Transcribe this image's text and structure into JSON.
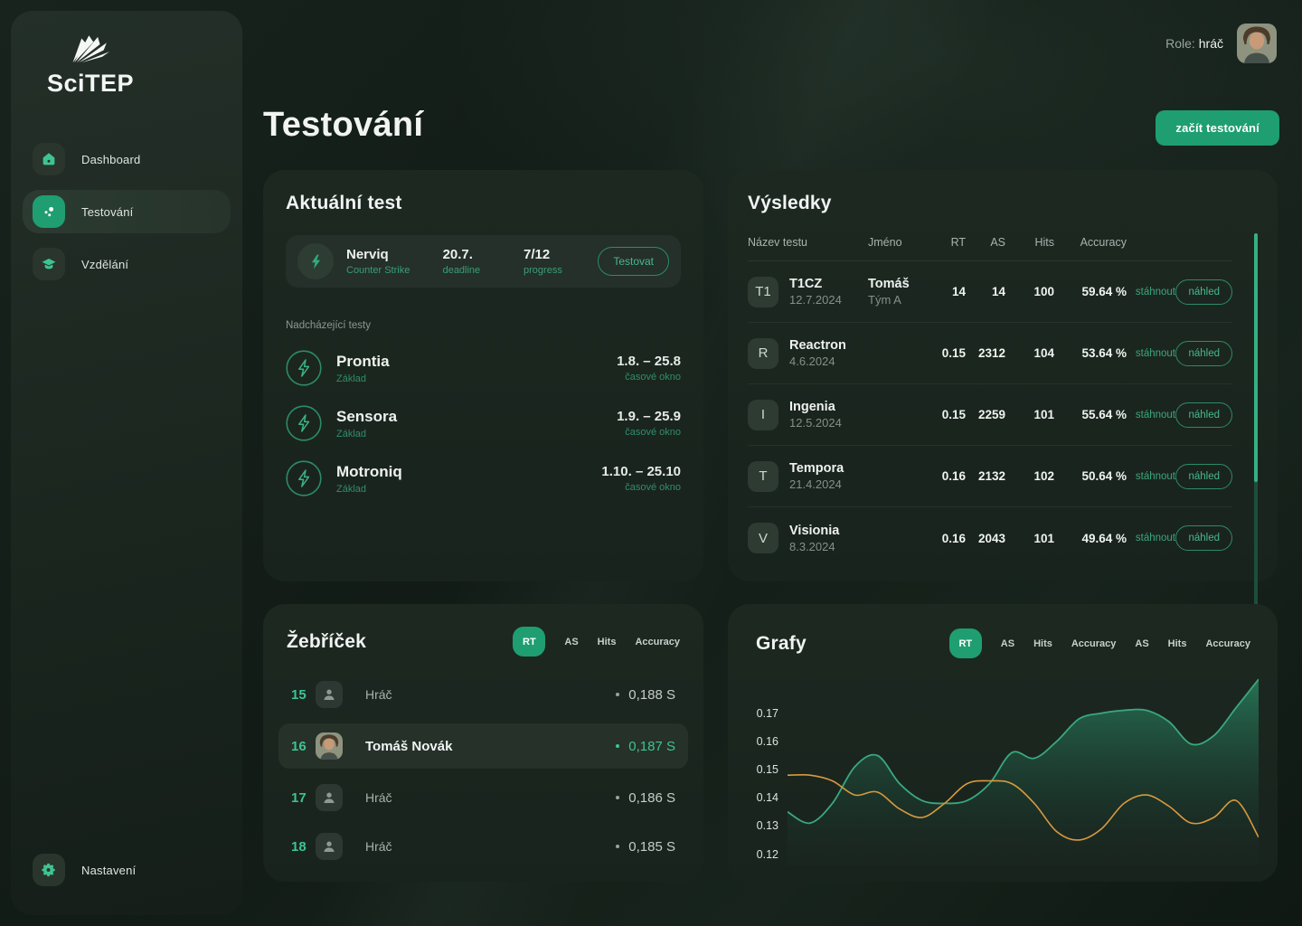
{
  "app": {
    "name": "SciTEP",
    "role_label": "Role:",
    "role_value": "hráč"
  },
  "page": {
    "title": "Testování",
    "cta": "začít testování"
  },
  "colors": {
    "accent": "#1f9e72",
    "accent_bright": "#3ec492",
    "green_text": "#3a9e78",
    "green_line": "#3aa87f",
    "orange_line": "#d89a3e",
    "card_bg": "#1c2721",
    "sidebar_bg": "#1f2b24",
    "page_bg": "#131d17"
  },
  "icons": {
    "logo": "scitep-crystal",
    "dashboard": "home-icon",
    "testing": "dots-icon",
    "education": "graduation-cap-icon",
    "settings": "gear-icon",
    "current_test": "lightning-icon",
    "upcoming_test": "lightning-outline-icon",
    "player_placeholder": "person-icon"
  },
  "sidebar": {
    "items": [
      {
        "label": "Dashboard",
        "active": false
      },
      {
        "label": "Testování",
        "active": true
      },
      {
        "label": "Vzdělání",
        "active": false
      }
    ],
    "bottom": {
      "label": "Nastavení"
    }
  },
  "current_test": {
    "title": "Aktuální test",
    "test": {
      "name": "Nerviq",
      "subtitle": "Counter Strike",
      "deadline": "20.7.",
      "deadline_label": "deadline",
      "progress": "7/12",
      "progress_label": "progress",
      "action": "Testovat"
    },
    "upcoming_label": "Nadcházející testy",
    "upcoming": [
      {
        "name": "Prontia",
        "level": "Základ",
        "range": "1.8. – 25.8",
        "window_label": "časové okno"
      },
      {
        "name": "Sensora",
        "level": "Základ",
        "range": "1.9. – 25.9",
        "window_label": "časové okno"
      },
      {
        "name": "Motroniq",
        "level": "Základ",
        "range": "1.10. – 25.10",
        "window_label": "časové okno"
      }
    ]
  },
  "results": {
    "title": "Výsledky",
    "columns": [
      "Název testu",
      "Jméno",
      "RT",
      "AS",
      "Hits",
      "Accuracy"
    ],
    "download_label": "stáhnout",
    "preview_label": "náhled",
    "rows": [
      {
        "avatar": "T1",
        "name": "T1CZ",
        "date": "12.7.2024",
        "person": "Tomáš",
        "team": "Tým A",
        "rt": "14",
        "as": "14",
        "hits": "100",
        "accuracy": "59.64 %"
      },
      {
        "avatar": "R",
        "name": "Reactron",
        "date": "4.6.2024",
        "person": "",
        "team": "",
        "rt": "0.15",
        "as": "2312",
        "hits": "104",
        "accuracy": "53.64 %"
      },
      {
        "avatar": "I",
        "name": "Ingenia",
        "date": "12.5.2024",
        "person": "",
        "team": "",
        "rt": "0.15",
        "as": "2259",
        "hits": "101",
        "accuracy": "55.64 %"
      },
      {
        "avatar": "T",
        "name": "Tempora",
        "date": "21.4.2024",
        "person": "",
        "team": "",
        "rt": "0.16",
        "as": "2132",
        "hits": "102",
        "accuracy": "50.64 %"
      },
      {
        "avatar": "V",
        "name": "Visionia",
        "date": "8.3.2024",
        "person": "",
        "team": "",
        "rt": "0.16",
        "as": "2043",
        "hits": "101",
        "accuracy": "49.64 %"
      }
    ]
  },
  "leaderboard": {
    "title": "Žebříček",
    "tabs": [
      "RT",
      "AS",
      "Hits",
      "Accuracy"
    ],
    "active_tab": "RT",
    "rows": [
      {
        "rank": "15",
        "name": "Hráč",
        "value": "0,188 S",
        "active": false,
        "photo": false
      },
      {
        "rank": "16",
        "name": "Tomáš Novák",
        "value": "0,187 S",
        "active": true,
        "photo": true
      },
      {
        "rank": "17",
        "name": "Hráč",
        "value": "0,186 S",
        "active": false,
        "photo": false
      },
      {
        "rank": "18",
        "name": "Hráč",
        "value": "0,185 S",
        "active": false,
        "photo": false
      }
    ]
  },
  "charts": {
    "title": "Grafy",
    "tabs": [
      "RT",
      "AS",
      "Hits",
      "Accuracy",
      "AS",
      "Hits",
      "Accuracy"
    ],
    "active_tab": "RT"
  },
  "chart_data": {
    "type": "area",
    "title": "Grafy",
    "active_metric": "RT",
    "yticks": [
      "0.17",
      "0.16",
      "0.15",
      "0.14",
      "0.13",
      "0.12"
    ],
    "ylim": [
      0.116,
      0.184
    ],
    "grid": false,
    "legend_position": "none",
    "series": [
      {
        "name": "series-green",
        "type": "area",
        "color": "#3aa87f",
        "fill": true,
        "values": [
          0.135,
          0.131,
          0.138,
          0.151,
          0.155,
          0.145,
          0.139,
          0.138,
          0.139,
          0.145,
          0.156,
          0.154,
          0.16,
          0.168,
          0.17,
          0.171,
          0.171,
          0.167,
          0.159,
          0.162,
          0.172,
          0.182
        ]
      },
      {
        "name": "series-orange",
        "type": "line",
        "color": "#d89a3e",
        "fill": false,
        "values": [
          0.148,
          0.148,
          0.146,
          0.141,
          0.142,
          0.136,
          0.133,
          0.138,
          0.145,
          0.146,
          0.145,
          0.138,
          0.128,
          0.125,
          0.129,
          0.138,
          0.141,
          0.137,
          0.131,
          0.133,
          0.139,
          0.126
        ]
      }
    ]
  }
}
